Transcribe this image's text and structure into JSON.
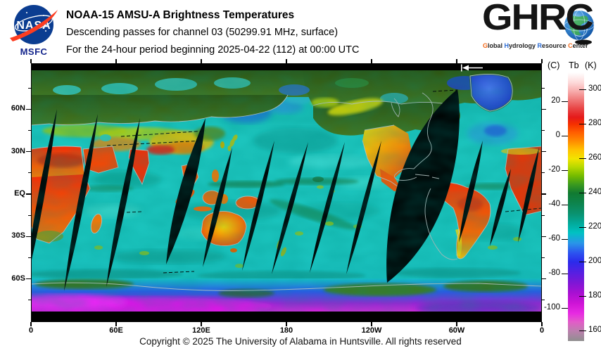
{
  "header": {
    "title": "NOAA-15 AMSU-A Brightness Temperatures",
    "subtitle1": "Descending passes for channel 03 (50299.91 MHz, surface)",
    "subtitle2": "For the 24-hour period beginning 2025-04-22 (112) at 00:00 UTC",
    "nasa_logo_text": "NASA",
    "nasa_center": "MSFC",
    "ghrc_acronym": "GHRC",
    "ghrc_tagline": [
      {
        "t": "G",
        "c": "#f26a1b"
      },
      {
        "t": "lobal ",
        "c": "#1f1f1f"
      },
      {
        "t": "H",
        "c": "#2a6bd4"
      },
      {
        "t": "ydrology ",
        "c": "#1f1f1f"
      },
      {
        "t": "R",
        "c": "#2a6bd4"
      },
      {
        "t": "esource ",
        "c": "#1f1f1f"
      },
      {
        "t": "C",
        "c": "#f26a1b"
      },
      {
        "t": "enter",
        "c": "#1f1f1f"
      }
    ]
  },
  "map": {
    "lat_labels": [
      "60N",
      "30N",
      "EQ",
      "30S",
      "60S"
    ],
    "lon_labels": [
      "0",
      "60E",
      "120E",
      "180",
      "120W",
      "60W",
      "0"
    ],
    "swath_arrow_icon": "arrow-left-to-bar"
  },
  "colorbar": {
    "unit_left": "(C)",
    "quantity": "Tb",
    "unit_right": "(K)",
    "k_ticks": [
      300,
      280,
      260,
      240,
      220,
      200,
      180,
      160
    ],
    "c_ticks": [
      20,
      0,
      -20,
      -40,
      -60,
      -80,
      -100
    ],
    "k_range": [
      154,
      310
    ],
    "gradient_stops": [
      [
        310,
        "#ffffff"
      ],
      [
        304,
        "#fdd9d9"
      ],
      [
        299,
        "#f7aaaa"
      ],
      [
        294,
        "#ef7777"
      ],
      [
        289,
        "#e84444"
      ],
      [
        284,
        "#e51a1a"
      ],
      [
        280,
        "#f53000"
      ],
      [
        275,
        "#ff5f00"
      ],
      [
        270,
        "#ff8c00"
      ],
      [
        265,
        "#ffc100"
      ],
      [
        260,
        "#f2e400"
      ],
      [
        255,
        "#b5d800"
      ],
      [
        250,
        "#74bb00"
      ],
      [
        245,
        "#3b9a1e"
      ],
      [
        240,
        "#117a31"
      ],
      [
        234,
        "#0d844d"
      ],
      [
        228,
        "#0a9270"
      ],
      [
        222,
        "#02ab9d"
      ],
      [
        217,
        "#00c2c2"
      ],
      [
        211,
        "#2996e8"
      ],
      [
        205,
        "#2c52ef"
      ],
      [
        200,
        "#2b2beb"
      ],
      [
        194,
        "#5520e2"
      ],
      [
        188,
        "#7d17d6"
      ],
      [
        182,
        "#a810d2"
      ],
      [
        176,
        "#cd14d6"
      ],
      [
        170,
        "#e72ae2"
      ],
      [
        165,
        "#e25cc8"
      ],
      [
        160,
        "#bc7fae"
      ],
      [
        154,
        "#8f8f8f"
      ]
    ]
  },
  "footer": {
    "copyright": "Copyright © 2025 The University of Alabama in Huntsville.  All rights reserved"
  }
}
